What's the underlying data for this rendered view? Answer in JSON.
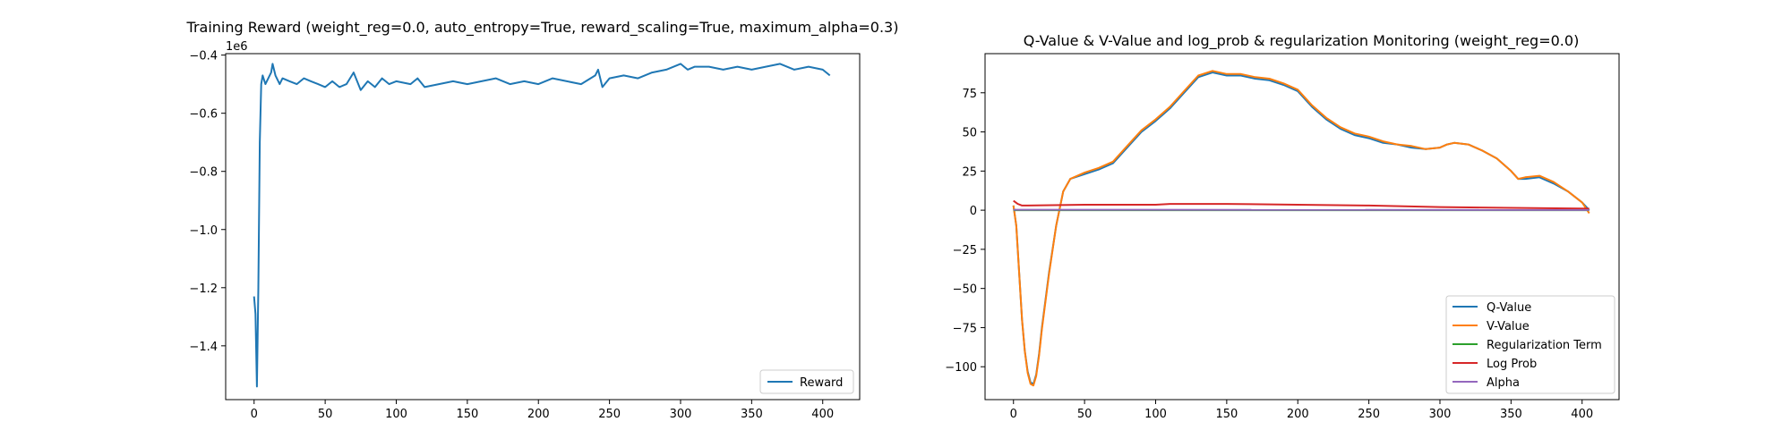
{
  "chart_data": [
    {
      "type": "line",
      "title": "Training Reward (weight_reg=0.0, auto_entropy=True, reward_scaling=True, maximum_alpha=0.3)",
      "xlabel": "",
      "ylabel": "",
      "y_offset_label": "1e6",
      "xlim": [
        -20,
        426
      ],
      "ylim": [
        -1.585,
        -0.395
      ],
      "x_ticks": [
        0,
        50,
        100,
        150,
        200,
        250,
        300,
        350,
        400
      ],
      "x_tick_labels": [
        "0",
        "50",
        "100",
        "150",
        "200",
        "250",
        "300",
        "350",
        "400"
      ],
      "y_ticks": [
        -1.4,
        -1.2,
        -1.0,
        -0.8,
        -0.6,
        -0.4
      ],
      "y_tick_labels": [
        "−1.4",
        "−1.2",
        "−1.0",
        "−0.8",
        "−0.6",
        "−0.4"
      ],
      "grid": false,
      "legend_position": "lower-right",
      "series": [
        {
          "name": "Reward",
          "color": "#1f77b4",
          "points": [
            [
              0,
              -1.23
            ],
            [
              1,
              -1.29
            ],
            [
              2,
              -1.54
            ],
            [
              3,
              -1.2
            ],
            [
              4,
              -0.7
            ],
            [
              5,
              -0.5
            ],
            [
              6,
              -0.47
            ],
            [
              8,
              -0.5
            ],
            [
              10,
              -0.48
            ],
            [
              12,
              -0.46
            ],
            [
              13,
              -0.43
            ],
            [
              15,
              -0.47
            ],
            [
              18,
              -0.5
            ],
            [
              20,
              -0.48
            ],
            [
              25,
              -0.49
            ],
            [
              30,
              -0.5
            ],
            [
              35,
              -0.48
            ],
            [
              40,
              -0.49
            ],
            [
              45,
              -0.5
            ],
            [
              50,
              -0.51
            ],
            [
              55,
              -0.49
            ],
            [
              60,
              -0.51
            ],
            [
              65,
              -0.5
            ],
            [
              70,
              -0.46
            ],
            [
              75,
              -0.52
            ],
            [
              80,
              -0.49
            ],
            [
              85,
              -0.51
            ],
            [
              90,
              -0.48
            ],
            [
              95,
              -0.5
            ],
            [
              100,
              -0.49
            ],
            [
              110,
              -0.5
            ],
            [
              115,
              -0.48
            ],
            [
              120,
              -0.51
            ],
            [
              130,
              -0.5
            ],
            [
              140,
              -0.49
            ],
            [
              150,
              -0.5
            ],
            [
              160,
              -0.49
            ],
            [
              170,
              -0.48
            ],
            [
              180,
              -0.5
            ],
            [
              190,
              -0.49
            ],
            [
              200,
              -0.5
            ],
            [
              210,
              -0.48
            ],
            [
              220,
              -0.49
            ],
            [
              230,
              -0.5
            ],
            [
              240,
              -0.47
            ],
            [
              242,
              -0.45
            ],
            [
              245,
              -0.51
            ],
            [
              250,
              -0.48
            ],
            [
              260,
              -0.47
            ],
            [
              270,
              -0.48
            ],
            [
              280,
              -0.46
            ],
            [
              290,
              -0.45
            ],
            [
              300,
              -0.43
            ],
            [
              305,
              -0.45
            ],
            [
              310,
              -0.44
            ],
            [
              320,
              -0.44
            ],
            [
              330,
              -0.45
            ],
            [
              340,
              -0.44
            ],
            [
              350,
              -0.45
            ],
            [
              360,
              -0.44
            ],
            [
              370,
              -0.43
            ],
            [
              380,
              -0.45
            ],
            [
              390,
              -0.44
            ],
            [
              400,
              -0.45
            ],
            [
              405,
              -0.47
            ]
          ]
        }
      ]
    },
    {
      "type": "line",
      "title": "Q-Value & V-Value and log_prob & regularization Monitoring (weight_reg=0.0)",
      "xlabel": "",
      "ylabel": "",
      "xlim": [
        -20,
        426
      ],
      "ylim": [
        -121,
        100
      ],
      "x_ticks": [
        0,
        50,
        100,
        150,
        200,
        250,
        300,
        350,
        400
      ],
      "x_tick_labels": [
        "0",
        "50",
        "100",
        "150",
        "200",
        "250",
        "300",
        "350",
        "400"
      ],
      "y_ticks": [
        -100,
        -75,
        -50,
        -25,
        0,
        25,
        50,
        75
      ],
      "y_tick_labels": [
        "−100",
        "−75",
        "−50",
        "−25",
        "0",
        "25",
        "50",
        "75"
      ],
      "grid": false,
      "legend_position": "lower-right",
      "series": [
        {
          "name": "Q-Value",
          "color": "#1f77b4",
          "points": [
            [
              0,
              3
            ],
            [
              2,
              -10
            ],
            [
              4,
              -40
            ],
            [
              6,
              -70
            ],
            [
              8,
              -90
            ],
            [
              10,
              -103
            ],
            [
              12,
              -110
            ],
            [
              14,
              -111
            ],
            [
              16,
              -105
            ],
            [
              18,
              -92
            ],
            [
              20,
              -75
            ],
            [
              25,
              -40
            ],
            [
              30,
              -10
            ],
            [
              35,
              12
            ],
            [
              40,
              20
            ],
            [
              50,
              23
            ],
            [
              60,
              26
            ],
            [
              70,
              30
            ],
            [
              80,
              40
            ],
            [
              90,
              50
            ],
            [
              100,
              57
            ],
            [
              110,
              65
            ],
            [
              120,
              75
            ],
            [
              130,
              85
            ],
            [
              140,
              88
            ],
            [
              150,
              86
            ],
            [
              160,
              86
            ],
            [
              170,
              84
            ],
            [
              180,
              83
            ],
            [
              190,
              80
            ],
            [
              200,
              76
            ],
            [
              210,
              66
            ],
            [
              220,
              58
            ],
            [
              230,
              52
            ],
            [
              240,
              48
            ],
            [
              250,
              46
            ],
            [
              260,
              43
            ],
            [
              270,
              42
            ],
            [
              280,
              40
            ],
            [
              290,
              39
            ],
            [
              300,
              40
            ],
            [
              305,
              42
            ],
            [
              310,
              43
            ],
            [
              320,
              42
            ],
            [
              330,
              38
            ],
            [
              340,
              33
            ],
            [
              350,
              25
            ],
            [
              355,
              20
            ],
            [
              360,
              20
            ],
            [
              370,
              21
            ],
            [
              380,
              17
            ],
            [
              390,
              12
            ],
            [
              400,
              5
            ],
            [
              405,
              0
            ]
          ]
        },
        {
          "name": "V-Value",
          "color": "#ff7f0e",
          "points": [
            [
              0,
              3
            ],
            [
              2,
              -10
            ],
            [
              4,
              -40
            ],
            [
              6,
              -70
            ],
            [
              8,
              -90
            ],
            [
              10,
              -104
            ],
            [
              12,
              -111
            ],
            [
              14,
              -112
            ],
            [
              16,
              -106
            ],
            [
              18,
              -93
            ],
            [
              20,
              -76
            ],
            [
              25,
              -41
            ],
            [
              30,
              -10
            ],
            [
              35,
              12
            ],
            [
              40,
              20
            ],
            [
              50,
              24
            ],
            [
              60,
              27
            ],
            [
              70,
              31
            ],
            [
              80,
              41
            ],
            [
              90,
              51
            ],
            [
              100,
              58
            ],
            [
              110,
              66
            ],
            [
              120,
              76
            ],
            [
              130,
              86
            ],
            [
              140,
              89
            ],
            [
              150,
              87
            ],
            [
              160,
              87
            ],
            [
              170,
              85
            ],
            [
              180,
              84
            ],
            [
              190,
              81
            ],
            [
              200,
              77
            ],
            [
              210,
              67
            ],
            [
              220,
              59
            ],
            [
              230,
              53
            ],
            [
              240,
              49
            ],
            [
              250,
              47
            ],
            [
              260,
              44
            ],
            [
              270,
              42
            ],
            [
              280,
              41
            ],
            [
              290,
              39
            ],
            [
              300,
              40
            ],
            [
              305,
              42
            ],
            [
              310,
              43
            ],
            [
              320,
              42
            ],
            [
              330,
              38
            ],
            [
              340,
              33
            ],
            [
              350,
              25
            ],
            [
              355,
              20
            ],
            [
              360,
              21
            ],
            [
              370,
              22
            ],
            [
              380,
              18
            ],
            [
              390,
              12
            ],
            [
              400,
              5
            ],
            [
              405,
              -2
            ]
          ]
        },
        {
          "name": "Regularization Term",
          "color": "#2ca02c",
          "points": [
            [
              0,
              0
            ],
            [
              405,
              0
            ]
          ]
        },
        {
          "name": "Log Prob",
          "color": "#d62728",
          "points": [
            [
              0,
              6
            ],
            [
              3,
              4
            ],
            [
              6,
              3
            ],
            [
              10,
              3
            ],
            [
              50,
              3.5
            ],
            [
              100,
              3.5
            ],
            [
              110,
              4
            ],
            [
              150,
              4
            ],
            [
              200,
              3.5
            ],
            [
              250,
              3
            ],
            [
              300,
              2
            ],
            [
              350,
              1.5
            ],
            [
              405,
              1
            ]
          ]
        },
        {
          "name": "Alpha",
          "color": "#9467bd",
          "points": [
            [
              0,
              0.3
            ],
            [
              405,
              0.1
            ]
          ]
        }
      ]
    }
  ]
}
